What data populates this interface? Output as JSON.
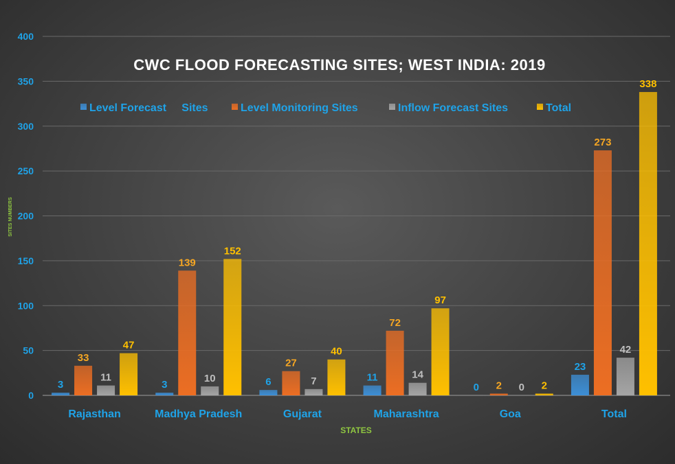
{
  "chart_data": {
    "type": "bar",
    "title": "CWC FLOOD FORECASTING SITES; WEST INDIA: 2019",
    "xlabel": "STATES",
    "ylabel": "SITES NUMBERS",
    "ylim": [
      0,
      400
    ],
    "yticks": [
      0,
      50,
      100,
      150,
      200,
      250,
      300,
      350,
      400
    ],
    "grid": true,
    "legend_position": "top",
    "categories": [
      "Rajasthan",
      "Madhya Pradesh",
      "Gujarat",
      "Maharashtra",
      "Goa",
      "Total"
    ],
    "series": [
      {
        "name": "Level Forecast     Sites",
        "color": "#3d8fd6",
        "label_color": "#1fa3e8",
        "values": [
          3,
          3,
          6,
          11,
          0,
          23
        ]
      },
      {
        "name": "Level Monitoring Sites",
        "color": "#ec6e23",
        "label_color": "#f5a623",
        "values": [
          33,
          139,
          27,
          72,
          2,
          273
        ]
      },
      {
        "name": "Inflow Forecast Sites",
        "color": "#a5a5a5",
        "label_color": "#bfbfbf",
        "values": [
          11,
          10,
          7,
          14,
          0,
          42
        ]
      },
      {
        "name": "Total",
        "color": "#ffc000",
        "label_color": "#ffc000",
        "values": [
          47,
          152,
          40,
          97,
          2,
          338
        ]
      }
    ],
    "colors": {
      "tick_label": "#1fa3e8",
      "axis_title": "#8fc641",
      "title": "#ffffff",
      "gridline": "#6a6a6a"
    }
  }
}
